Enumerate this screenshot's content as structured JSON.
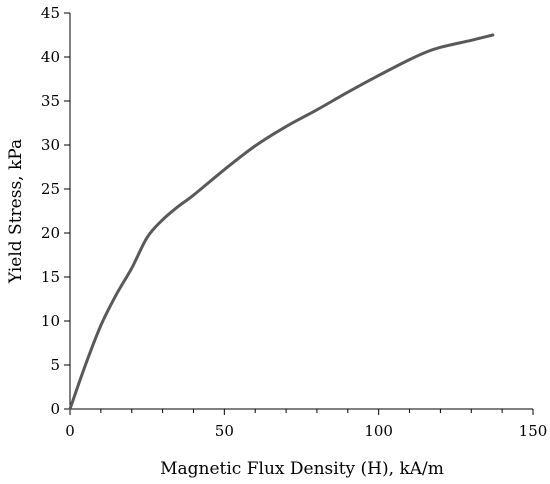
{
  "chart_data": {
    "type": "line",
    "title": "",
    "xlabel": "Magnetic Flux Density (H), kA/m",
    "ylabel": "Yield Stress, kPa",
    "xlim": [
      0,
      150
    ],
    "ylim": [
      0,
      45
    ],
    "x_ticks": [
      0,
      50,
      100,
      150
    ],
    "x_minor_step": 10,
    "y_ticks": [
      0,
      5,
      10,
      15,
      20,
      25,
      30,
      35,
      40,
      45
    ],
    "grid": false,
    "legend": "none",
    "series": [
      {
        "color": "#595959",
        "x": [
          0,
          5,
          10,
          15,
          20,
          25,
          30,
          35,
          40,
          50,
          60,
          70,
          80,
          90,
          100,
          110,
          115,
          120,
          130,
          137
        ],
        "y": [
          0,
          5,
          9.5,
          13,
          16,
          19.5,
          21.5,
          23,
          24.3,
          27.2,
          29.9,
          32.1,
          34.0,
          36.0,
          37.9,
          39.7,
          40.5,
          41.1,
          41.9,
          42.5
        ]
      }
    ]
  }
}
